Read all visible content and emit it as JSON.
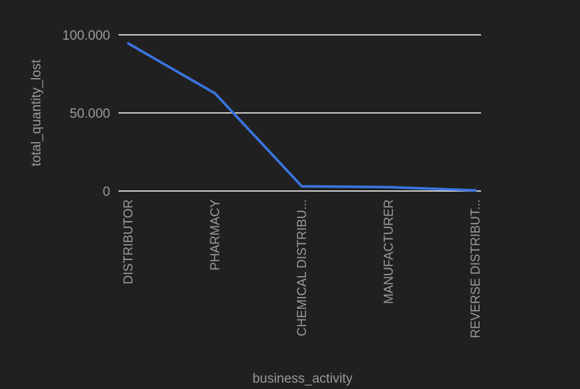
{
  "chart_data": {
    "type": "line",
    "categories": [
      "DISTRIBUTOR",
      "PHARMACY",
      "CHEMICAL DISTRIBU...",
      "MANUFACTURER",
      "REVERSE DISTRIBUT..."
    ],
    "series": [
      {
        "values": [
          94500,
          62500,
          3000,
          2500,
          400
        ]
      }
    ],
    "xlabel": "business_activity",
    "ylabel": "total_quantity_lost",
    "ylim": [
      0,
      100000
    ],
    "yticks": [
      {
        "value": 0,
        "label": "0"
      },
      {
        "value": 50000,
        "label": "50.000"
      },
      {
        "value": 100000,
        "label": "100.000"
      }
    ],
    "grid": true,
    "legend": "none",
    "colors": {
      "background": "#202020",
      "line": "#3b74e0",
      "grid": "#ffffff",
      "text": "#9a9a9a"
    }
  }
}
